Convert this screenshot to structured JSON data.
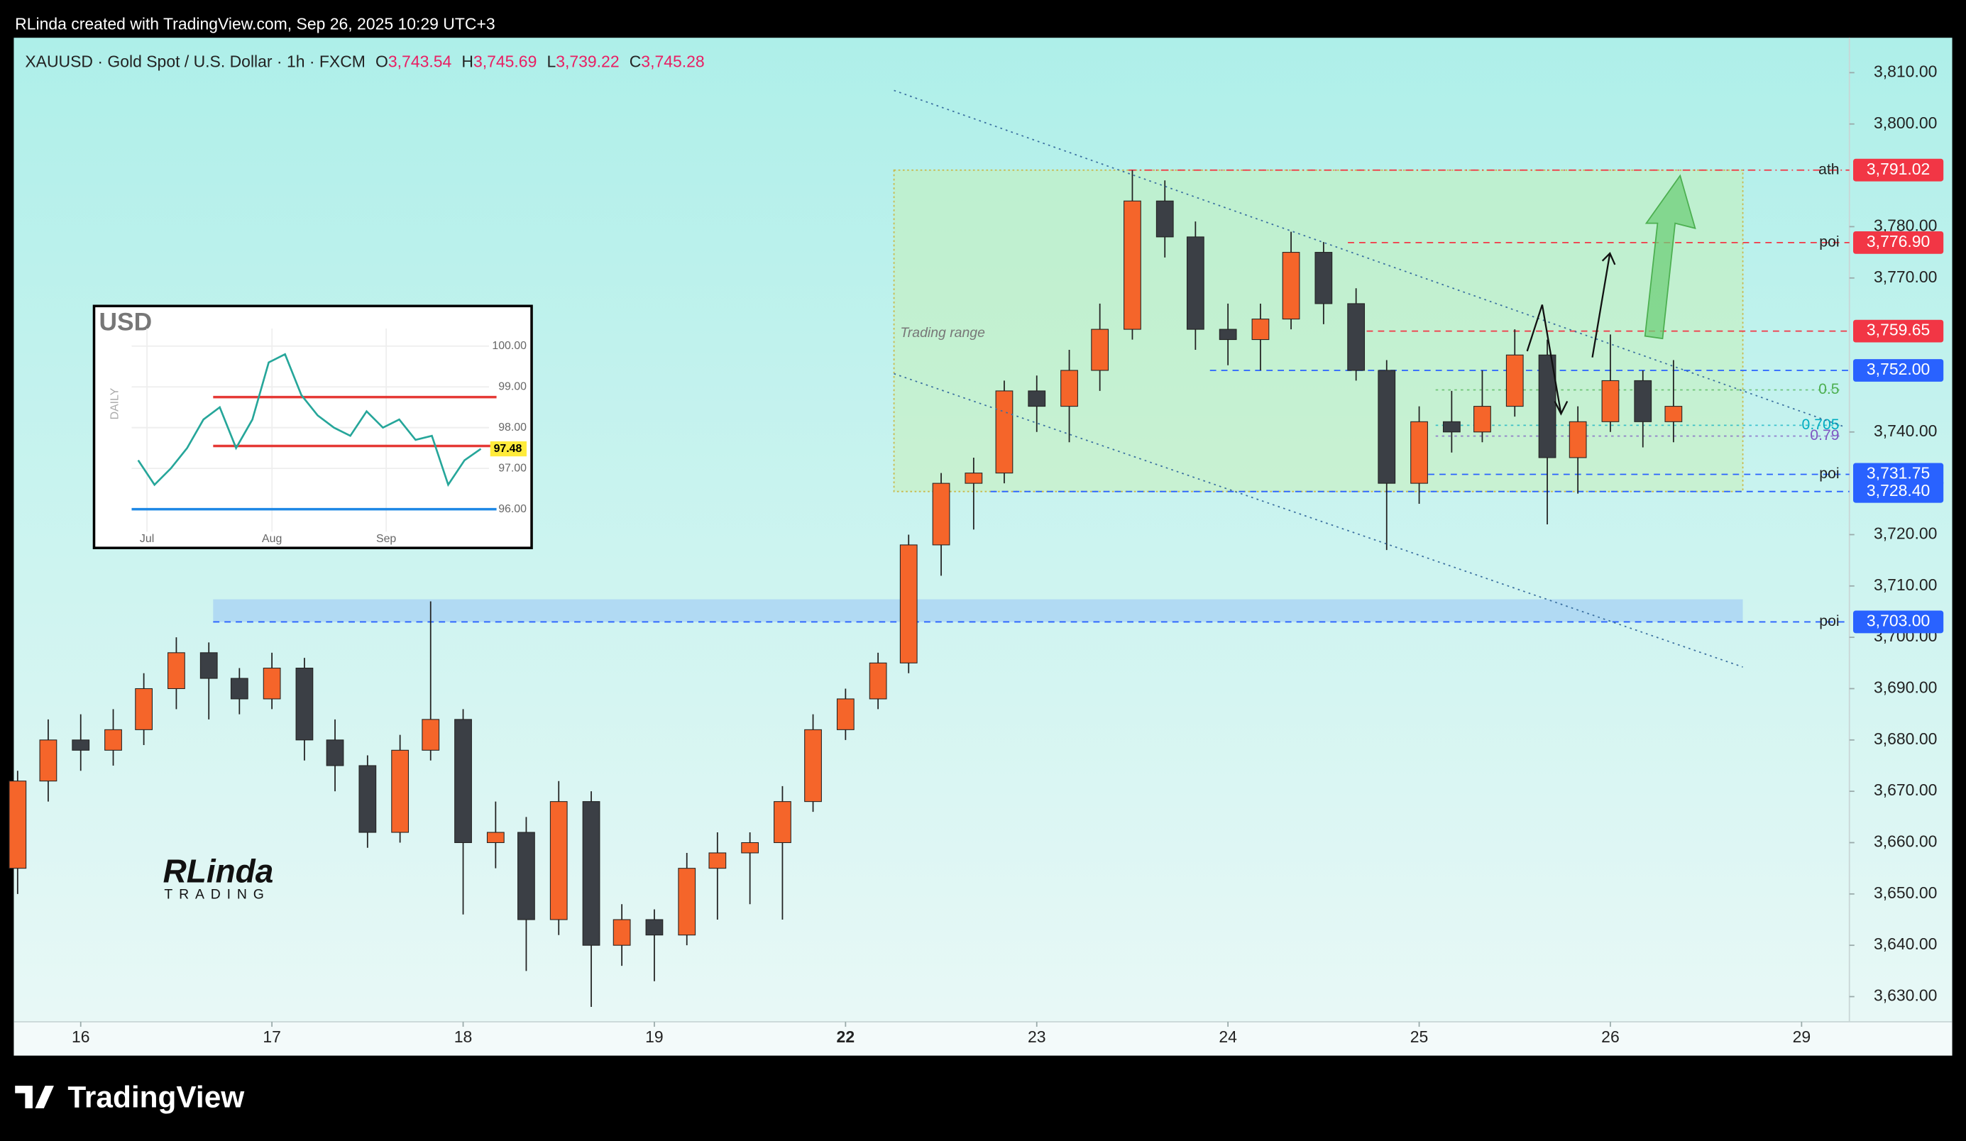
{
  "header": {
    "attribution": "RLinda created with TradingView.com, Sep 26, 2025 10:29 UTC+3",
    "brand": "TradingView"
  },
  "watermark": {
    "name": "RLinda",
    "sub": "TRADING"
  },
  "chart_data": [
    {
      "type": "candlestick",
      "title": "XAUUSD · Gold Spot / U.S. Dollar · 1h · FXCM",
      "ohlc_legend": [
        {
          "key": "O",
          "value": 3743.54,
          "label": "3,743.54"
        },
        {
          "key": "H",
          "value": 3745.69,
          "label": "3,745.69"
        },
        {
          "key": "L",
          "value": 3739.22,
          "label": "3,739.22"
        },
        {
          "key": "C",
          "value": 3745.28,
          "label": "3,745.28"
        }
      ],
      "up_color": "#f5652a",
      "down_color": "#3b3f45",
      "candles": {
        "x": [
          -0.33,
          -0.17,
          0,
          0.17,
          0.33,
          0.5,
          0.67,
          0.83,
          1,
          1.17,
          1.33,
          1.5,
          1.67,
          1.83,
          2,
          2.17,
          2.33,
          2.5,
          2.67,
          2.83,
          3,
          3.17,
          3.33,
          3.5,
          3.67,
          3.83,
          4,
          4.17,
          4.33,
          4.5,
          4.67,
          4.83,
          5,
          5.17,
          5.33,
          5.5,
          5.67,
          5.83,
          6,
          6.17,
          6.33,
          6.5,
          6.67,
          6.83,
          7,
          7.17,
          7.33,
          7.5,
          7.67,
          7.83,
          8,
          8.17,
          8.33
        ],
        "open": [
          3655,
          3672,
          3680,
          3678,
          3682,
          3690,
          3697,
          3692,
          3688,
          3694,
          3680,
          3675,
          3662,
          3678,
          3684,
          3660,
          3662,
          3645,
          3668,
          3640,
          3645,
          3642,
          3655,
          3658,
          3660,
          3668,
          3682,
          3688,
          3695,
          3718,
          3730,
          3732,
          3748,
          3745,
          3752,
          3760,
          3785,
          3778,
          3760,
          3758,
          3762,
          3775,
          3765,
          3752,
          3730,
          3742,
          3740,
          3745,
          3755,
          3735,
          3742,
          3750,
          3742
        ],
        "high": [
          3674,
          3684,
          3685,
          3686,
          3693,
          3700,
          3699,
          3694,
          3697,
          3696,
          3684,
          3677,
          3681,
          3707,
          3686,
          3668,
          3665,
          3672,
          3670,
          3648,
          3647,
          3658,
          3662,
          3662,
          3671,
          3685,
          3690,
          3697,
          3720,
          3732,
          3735,
          3750,
          3751,
          3756,
          3765,
          3791,
          3789,
          3781,
          3765,
          3765,
          3779,
          3777,
          3768,
          3754,
          3745,
          3748,
          3752,
          3760,
          3758,
          3745,
          3759,
          3752,
          3754
        ],
        "low": [
          3650,
          3668,
          3674,
          3675,
          3679,
          3686,
          3684,
          3685,
          3686,
          3676,
          3670,
          3659,
          3660,
          3676,
          3646,
          3655,
          3635,
          3642,
          3628,
          3636,
          3633,
          3640,
          3645,
          3648,
          3645,
          3666,
          3680,
          3686,
          3693,
          3712,
          3721,
          3730,
          3740,
          3738,
          3748,
          3758,
          3774,
          3756,
          3753,
          3752,
          3760,
          3761,
          3750,
          3717,
          3726,
          3736,
          3738,
          3743,
          3722,
          3728,
          3740,
          3737,
          3738
        ],
        "close": [
          3672,
          3680,
          3678,
          3682,
          3690,
          3697,
          3692,
          3688,
          3694,
          3680,
          3675,
          3662,
          3678,
          3684,
          3660,
          3662,
          3645,
          3668,
          3640,
          3645,
          3642,
          3655,
          3658,
          3660,
          3668,
          3682,
          3688,
          3695,
          3718,
          3730,
          3732,
          3748,
          3745,
          3752,
          3760,
          3785,
          3778,
          3760,
          3758,
          3762,
          3775,
          3765,
          3752,
          3730,
          3742,
          3740,
          3745,
          3755,
          3735,
          3742,
          3750,
          3742,
          3745
        ]
      },
      "xlim": [
        -0.35,
        9.25
      ],
      "xticks": [
        {
          "value": 0,
          "label": "16"
        },
        {
          "value": 1,
          "label": "17"
        },
        {
          "value": 2,
          "label": "18"
        },
        {
          "value": 3,
          "label": "19"
        },
        {
          "value": 4,
          "label": "22"
        },
        {
          "value": 5,
          "label": "23"
        },
        {
          "value": 6,
          "label": "24"
        },
        {
          "value": 7,
          "label": "25"
        },
        {
          "value": 8,
          "label": "26"
        },
        {
          "value": 9,
          "label": "29"
        }
      ],
      "ylim": [
        3625.1,
        3816.8
      ],
      "yticks": [
        {
          "value": 3810,
          "label": "3,810.00"
        },
        {
          "value": 3800,
          "label": "3,800.00"
        },
        {
          "value": 3780,
          "label": "3,780.00"
        },
        {
          "value": 3770,
          "label": "3,770.00"
        },
        {
          "value": 3740,
          "label": "3,740.00"
        },
        {
          "value": 3720,
          "label": "3,720.00"
        },
        {
          "value": 3710,
          "label": "3,710.00"
        },
        {
          "value": 3700,
          "label": "3,700.00"
        },
        {
          "value": 3690,
          "label": "3,690.00"
        },
        {
          "value": 3680,
          "label": "3,680.00"
        },
        {
          "value": 3670,
          "label": "3,670.00"
        },
        {
          "value": 3660,
          "label": "3,660.00"
        },
        {
          "value": 3650,
          "label": "3,650.00"
        },
        {
          "value": 3640,
          "label": "3,640.00"
        },
        {
          "value": 3630,
          "label": "3,630.00"
        }
      ],
      "levels": [
        {
          "value": 3791.02,
          "label": "3,791.02",
          "tag": "ath",
          "color": "#f23645"
        },
        {
          "value": 3776.9,
          "label": "3,776.90",
          "tag": "poi",
          "color": "#f23645"
        },
        {
          "value": 3759.65,
          "label": "3,759.65",
          "color": "#f23645"
        },
        {
          "value": 3752.0,
          "label": "3,752.00",
          "color": "#2962ff"
        },
        {
          "value": 3731.75,
          "label": "3,731.75",
          "tag": "poi",
          "color": "#2962ff"
        },
        {
          "value": 3728.4,
          "label": "3,728.40",
          "color": "#2962ff"
        },
        {
          "value": 3703.0,
          "label": "3,703.00",
          "tag": "poi",
          "color": "#2962ff"
        }
      ],
      "fib": [
        {
          "label": "0.5",
          "price": 3748.2,
          "color": "#4caf50"
        },
        {
          "label": "0.705",
          "price": 3741.3,
          "color": "#00acc1"
        },
        {
          "label": "0.79",
          "price": 3739.2,
          "color": "#7e57c2"
        }
      ],
      "trading_range": {
        "label": "Trading range"
      },
      "zone": {
        "high": 3707.4
      }
    },
    {
      "type": "line",
      "title": "USD",
      "side_label": "DAILY",
      "color": "#26a69a",
      "values": [
        97.2,
        96.6,
        97.0,
        97.5,
        98.2,
        98.5,
        97.5,
        98.2,
        99.6,
        99.8,
        98.8,
        98.3,
        98.0,
        97.8,
        98.4,
        98.0,
        98.2,
        97.7,
        97.8,
        96.6,
        97.2,
        97.48
      ],
      "xlim": [
        -0.4,
        21.5
      ],
      "xticks": [
        {
          "value": 0.54,
          "label": "Jul"
        },
        {
          "value": 8.2,
          "label": "Aug"
        },
        {
          "value": 15.2,
          "label": "Sep"
        }
      ],
      "ylim": [
        95.88,
        100.43
      ],
      "yticks": [
        {
          "value": 100,
          "label": "100.00"
        },
        {
          "value": 99,
          "label": "99.00"
        },
        {
          "value": 98,
          "label": "98.00"
        },
        {
          "value": 97,
          "label": "97.00"
        },
        {
          "value": 96,
          "label": "96.00"
        }
      ],
      "lines": [
        {
          "value": 98.75,
          "color": "#e53935"
        },
        {
          "value": 97.55,
          "color": "#e53935"
        },
        {
          "value": 96.0,
          "color": "#1e88e5"
        }
      ],
      "last": {
        "value": 97.48,
        "label": "97.48"
      }
    }
  ]
}
